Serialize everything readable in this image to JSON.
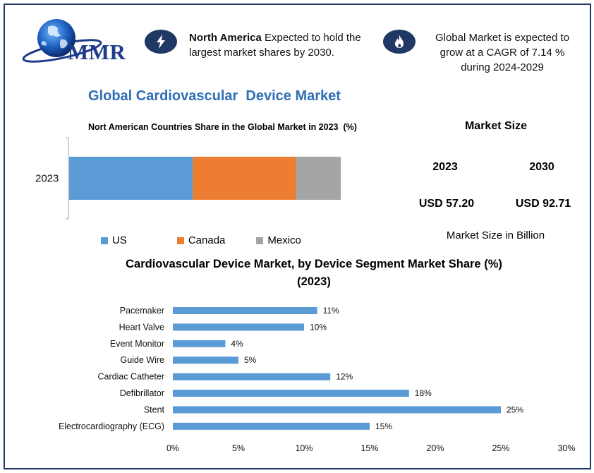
{
  "brand": {
    "logo_text": "MMR"
  },
  "header": {
    "info1": {
      "bold": "North America",
      "text": " Expected to hold the largest market shares by 2030."
    },
    "info2": {
      "text": "Global Market is expected to grow at a CAGR of 7.14 % during 2024-2029"
    },
    "icons": [
      "lightning-icon",
      "flame-icon"
    ]
  },
  "main_title": "Global Cardiovascular  Device Market",
  "market_size": {
    "title": "Market Size",
    "years": [
      "2023",
      "2030"
    ],
    "values": [
      "USD 57.20",
      "USD 92.71"
    ],
    "note": "Market Size in Billion"
  },
  "colors": {
    "accent": "#1f3864",
    "title_blue": "#2f6fb5",
    "us": "#5b9bd5",
    "canada": "#ed7d31",
    "mexico": "#a5a5a5",
    "bar": "#5b9bd5"
  },
  "chart_data": [
    {
      "type": "bar",
      "orientation": "horizontal",
      "stacked": true,
      "title": "Nort American Countries Share in the Global Market in 2023  (%)",
      "categories": [
        "2023"
      ],
      "series": [
        {
          "name": "US",
          "values": [
            45.5
          ]
        },
        {
          "name": "Canada",
          "values": [
            38
          ]
        },
        {
          "name": "Mexico",
          "values": [
            16.5
          ]
        }
      ],
      "legend": "bottom"
    },
    {
      "type": "bar",
      "orientation": "horizontal",
      "title": "Cardiovascular Device Market, by Device Segment Market Share (%)",
      "subtitle": "(2023)",
      "categories": [
        "Pacemaker",
        "Heart Valve",
        "Event Monitor",
        "Guide Wire",
        "Cardiac Catheter",
        "Defibrillator",
        "Stent",
        "Electrocardiography (ECG)"
      ],
      "values": [
        11,
        10,
        4,
        5,
        12,
        18,
        25,
        15
      ],
      "data_labels": [
        "11%",
        "10%",
        "4%",
        "5%",
        "12%",
        "18%",
        "25%",
        "15%"
      ],
      "xlim": [
        0,
        30
      ],
      "x_ticks": [
        "0%",
        "5%",
        "10%",
        "15%",
        "20%",
        "25%",
        "30%"
      ],
      "grid": false
    }
  ]
}
